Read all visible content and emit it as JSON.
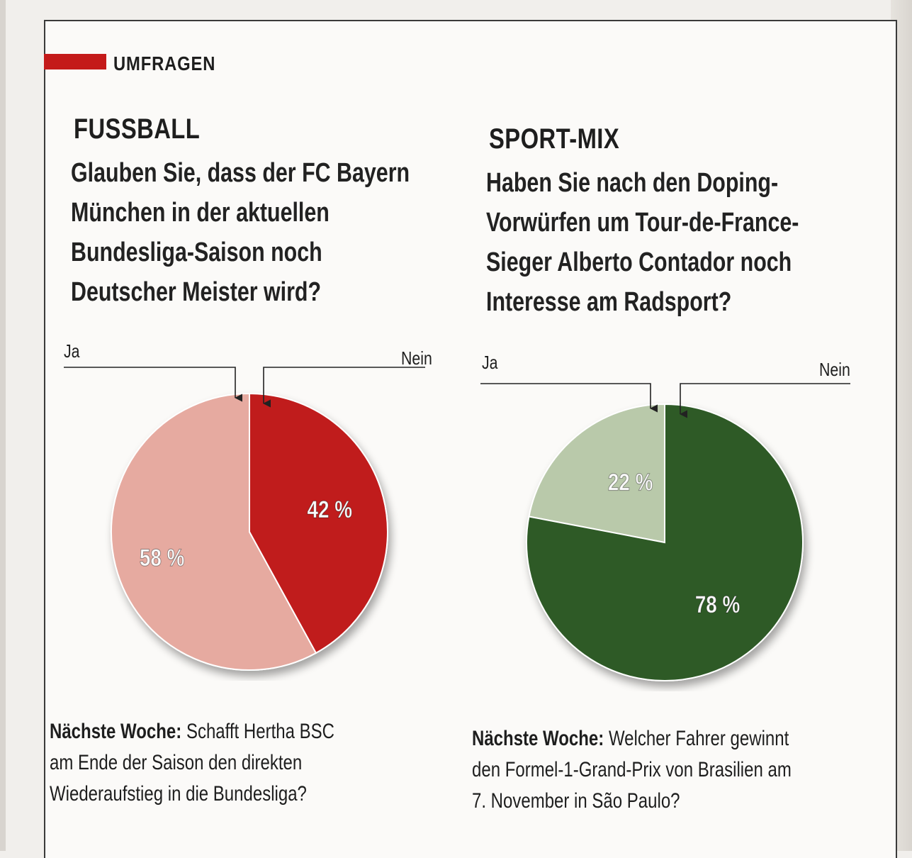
{
  "section": {
    "label": "UMFRAGEN",
    "accent": "#c41a1a"
  },
  "polls": [
    {
      "title": "FUSSBALL",
      "question_lines": [
        "Glauben Sie, dass der FC Bayern",
        "München in der aktuellen",
        "Bundesliga-Saison noch",
        "Deutscher Meister wird?"
      ],
      "next_label": "Nächste Woche:",
      "next_lines": [
        "Schafft Hertha BSC",
        "am Ende der Saison den direkten",
        "Wiederaufstieg in die Bundesliga?"
      ]
    },
    {
      "title": "SPORT-MIX",
      "question_lines": [
        "Haben Sie nach den Doping-",
        "Vorwürfen um Tour-de-France-",
        "Sieger Alberto Contador noch",
        "Interesse am Radsport?"
      ],
      "next_label": "Nächste Woche:",
      "next_lines": [
        "Welcher Fahrer gewinnt",
        "den Formel-1-Grand-Prix von Brasilien am",
        "7. November in São Paulo?"
      ]
    }
  ],
  "chart_data": [
    {
      "type": "pie",
      "slices": [
        {
          "label": "Ja",
          "value": 58,
          "display": "58 %",
          "color": "#e6aaa0"
        },
        {
          "label": "Nein",
          "value": 42,
          "display": "42 %",
          "color": "#c01a1a"
        }
      ]
    },
    {
      "type": "pie",
      "slices": [
        {
          "label": "Ja",
          "value": 22,
          "display": "22 %",
          "color": "#b9c9aa"
        },
        {
          "label": "Nein",
          "value": 78,
          "display": "78 %",
          "color": "#2d5a26"
        }
      ]
    }
  ]
}
